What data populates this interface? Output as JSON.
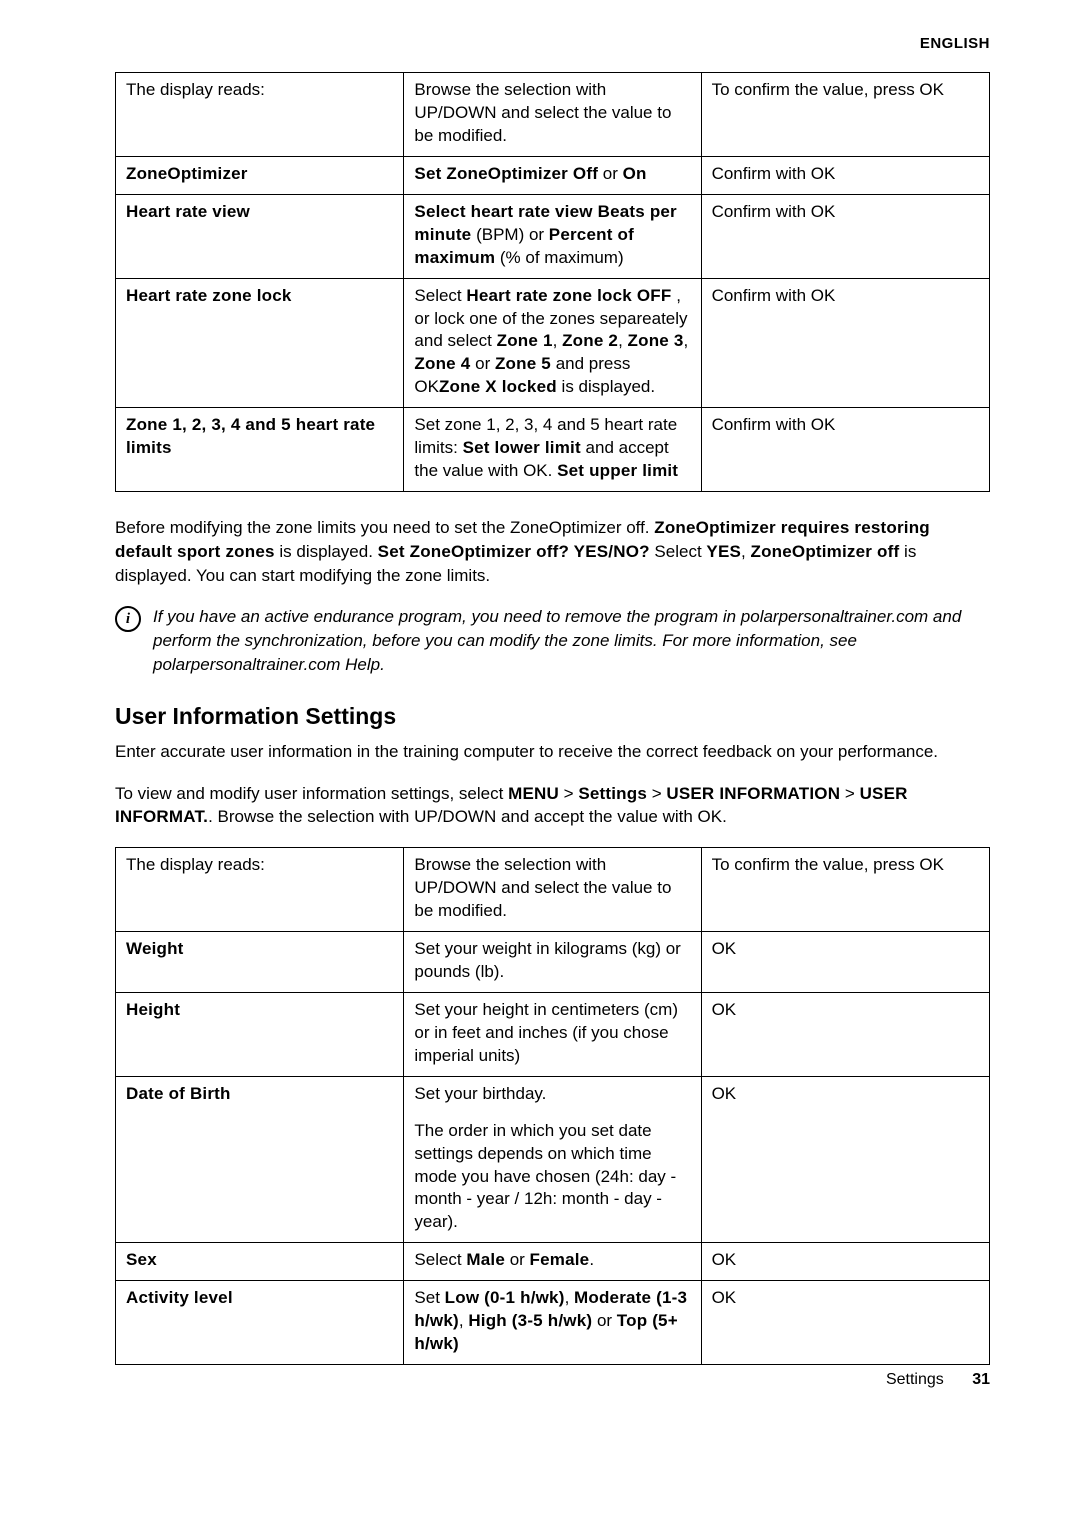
{
  "header": {
    "lang": "ENGLISH"
  },
  "table1": {
    "rows": [
      {
        "c1": "The display reads:",
        "c2_parts": [
          "Browse the selection with UP/DOWN and select the value to be modified."
        ],
        "c3": "To confirm the value, press OK"
      },
      {
        "c1_bold": "ZoneOptimizer",
        "c2_parts": [
          {
            "b": "Set ZoneOptimizer Off"
          },
          " or ",
          {
            "b": "On"
          }
        ],
        "c3": "Confirm with OK"
      },
      {
        "c1_bold": "Heart rate view",
        "c2_parts": [
          {
            "b": "Select heart rate view Beats per minute"
          },
          " (BPM) or ",
          {
            "b": "Percent of maximum"
          },
          " (% of maximum)"
        ],
        "c3": "Confirm with OK"
      },
      {
        "c1_bold": "Heart rate zone lock",
        "c2_parts": [
          "Select ",
          {
            "b": "Heart rate zone lock OFF"
          },
          " , or lock one of the zones separeately and select ",
          {
            "b": "Zone 1"
          },
          ", ",
          {
            "b": "Zone 2"
          },
          ", ",
          {
            "b": "Zone 3"
          },
          ", ",
          {
            "b": "Zone 4"
          },
          " or ",
          {
            "b": "Zone 5"
          },
          " and press OK",
          {
            "b": "Zone X locked"
          },
          " is displayed."
        ],
        "c3": "Confirm with OK"
      },
      {
        "c1_bold": "Zone 1, 2, 3, 4 and 5 heart rate limits",
        "c2_parts": [
          "Set zone 1, 2, 3, 4 and 5 heart rate limits: ",
          {
            "b": "Set lower limit"
          },
          " and accept the value with OK. ",
          {
            "b": "Set upper limit"
          }
        ],
        "c3": "Confirm with OK"
      }
    ]
  },
  "para1_parts": [
    "Before modifying the zone limits you need to set the ZoneOptimizer off. ",
    {
      "b": "ZoneOptimizer requires restoring default sport zones"
    },
    " is displayed. ",
    {
      "b": "Set ZoneOptimizer off? YES/NO?"
    },
    " Select ",
    {
      "b": "YES"
    },
    ", ",
    {
      "b": "ZoneOptimizer off"
    },
    " is displayed. You can start modifying the zone limits."
  ],
  "info_note": "If you have an active endurance program, you need to remove the program in polarpersonaltrainer.com and perform the synchronization, before you can modify the zone limits. For more information, see polarpersonaltrainer.com Help.",
  "section_title": "User Information Settings",
  "para2": "Enter accurate user information in the training computer to receive the correct feedback on your performance.",
  "para3_parts": [
    "To view and modify user information settings, select ",
    {
      "b": "MENU"
    },
    " > ",
    {
      "b": "Settings"
    },
    " > ",
    {
      "b": "USER INFORMATION"
    },
    " > ",
    {
      "b": "USER INFORMAT."
    },
    ". Browse the selection with UP/DOWN and accept the value with OK."
  ],
  "table2": {
    "rows": [
      {
        "c1": "The display reads:",
        "c2_parts": [
          "Browse the selection with UP/DOWN and select the value to be modified."
        ],
        "c3": "To confirm the value, press OK"
      },
      {
        "c1_bold": "Weight",
        "c2_parts": [
          "Set your weight in kilograms (kg) or pounds (lb)."
        ],
        "c3": "OK"
      },
      {
        "c1_bold": "Height",
        "c2_parts": [
          "Set your height in centimeters (cm) or in feet and inches (if you chose imperial units)"
        ],
        "c3": "OK"
      },
      {
        "c1_bold": "Date of Birth",
        "c2_parts_multi": [
          "Set your birthday.",
          "The order in which you set date settings depends on which time mode you have chosen (24h: day - month - year / 12h: month - day - year)."
        ],
        "c3": "OK"
      },
      {
        "c1_bold": "Sex",
        "c2_parts": [
          "Select ",
          {
            "b": "Male"
          },
          " or ",
          {
            "b": "Female"
          },
          "."
        ],
        "c3": "OK"
      },
      {
        "c1_bold": "Activity level",
        "c2_parts": [
          "Set ",
          {
            "b": "Low (0-1 h/wk)"
          },
          ", ",
          {
            "b": "Moderate (1-3 h/wk)"
          },
          ", ",
          {
            "b": "High (3-5 h/wk)"
          },
          " or ",
          {
            "b": "Top (5+ h/wk)"
          }
        ],
        "c3": "OK"
      }
    ]
  },
  "footer": {
    "label": "Settings",
    "page": "31"
  }
}
